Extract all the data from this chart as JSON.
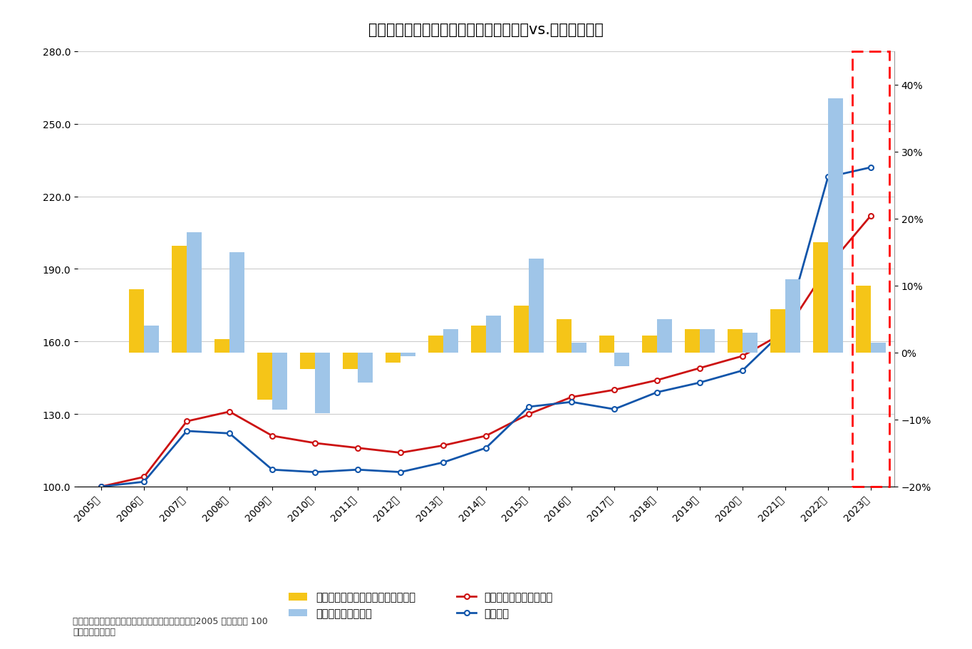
{
  "title": "図表－３　「新築マンション価格指数」vs.「平均価格」",
  "years": [
    2005,
    2006,
    2007,
    2008,
    2009,
    2010,
    2011,
    2012,
    2013,
    2014,
    2015,
    2016,
    2017,
    2018,
    2019,
    2020,
    2021,
    2022,
    2023
  ],
  "year_labels": [
    "2005年",
    "2006年",
    "2007年",
    "2008年",
    "2009年",
    "2010年",
    "2011年",
    "2012年",
    "2013年",
    "2014年",
    "2015年",
    "2016年",
    "2017年",
    "2018年",
    "2019年",
    "2020年",
    "2021年",
    "2022年",
    "2023年"
  ],
  "shinchiku_index": [
    100.0,
    104.0,
    127.0,
    131.0,
    121.0,
    118.0,
    116.0,
    114.0,
    117.0,
    121.0,
    130.0,
    137.0,
    140.0,
    144.0,
    149.0,
    154.0,
    164.0,
    191.0,
    212.0
  ],
  "average_price": [
    100.0,
    102.0,
    123.0,
    122.0,
    107.0,
    106.0,
    107.0,
    106.0,
    110.0,
    116.0,
    133.0,
    135.0,
    132.0,
    139.0,
    143.0,
    148.0,
    165.0,
    228.0,
    232.0
  ],
  "shinchiku_yoy_pct": [
    0,
    9.5,
    16.0,
    2.0,
    -7.0,
    -2.5,
    -2.5,
    -1.5,
    2.5,
    4.0,
    7.0,
    5.0,
    2.5,
    2.5,
    3.5,
    3.5,
    6.5,
    16.5,
    10.0
  ],
  "average_yoy_pct": [
    0,
    4.0,
    18.0,
    15.0,
    -8.5,
    -9.0,
    -4.5,
    -0.5,
    3.5,
    5.5,
    14.0,
    1.5,
    -2.0,
    5.0,
    3.5,
    3.0,
    11.0,
    38.0,
    1.5
  ],
  "ylim_left": [
    100.0,
    280.0
  ],
  "ylim_right": [
    -20.0,
    45.0
  ],
  "yticks_left": [
    100.0,
    130.0,
    160.0,
    190.0,
    220.0,
    250.0,
    280.0
  ],
  "yticks_right": [
    -20,
    -10,
    0,
    10,
    20,
    30,
    40
  ],
  "bar_width": 0.35,
  "color_shinchiku_bar": "#F5C518",
  "color_average_bar": "#9FC5E8",
  "color_shinchiku_line": "#CC1111",
  "color_average_line": "#1155AA",
  "background_color": "#FFFFFF",
  "grid_color": "#CCCCCC",
  "legend1": "新築マンション価格指数（前期比）",
  "legend2": "平均価格（前年比）",
  "legend3": "新築マンション価格指数",
  "legend4": "平均価格",
  "note1": "（注）「平均価格」は不動産経済研究所のデータ。2005 年の価格を 100",
  "note2": "（資料）筆者作成"
}
